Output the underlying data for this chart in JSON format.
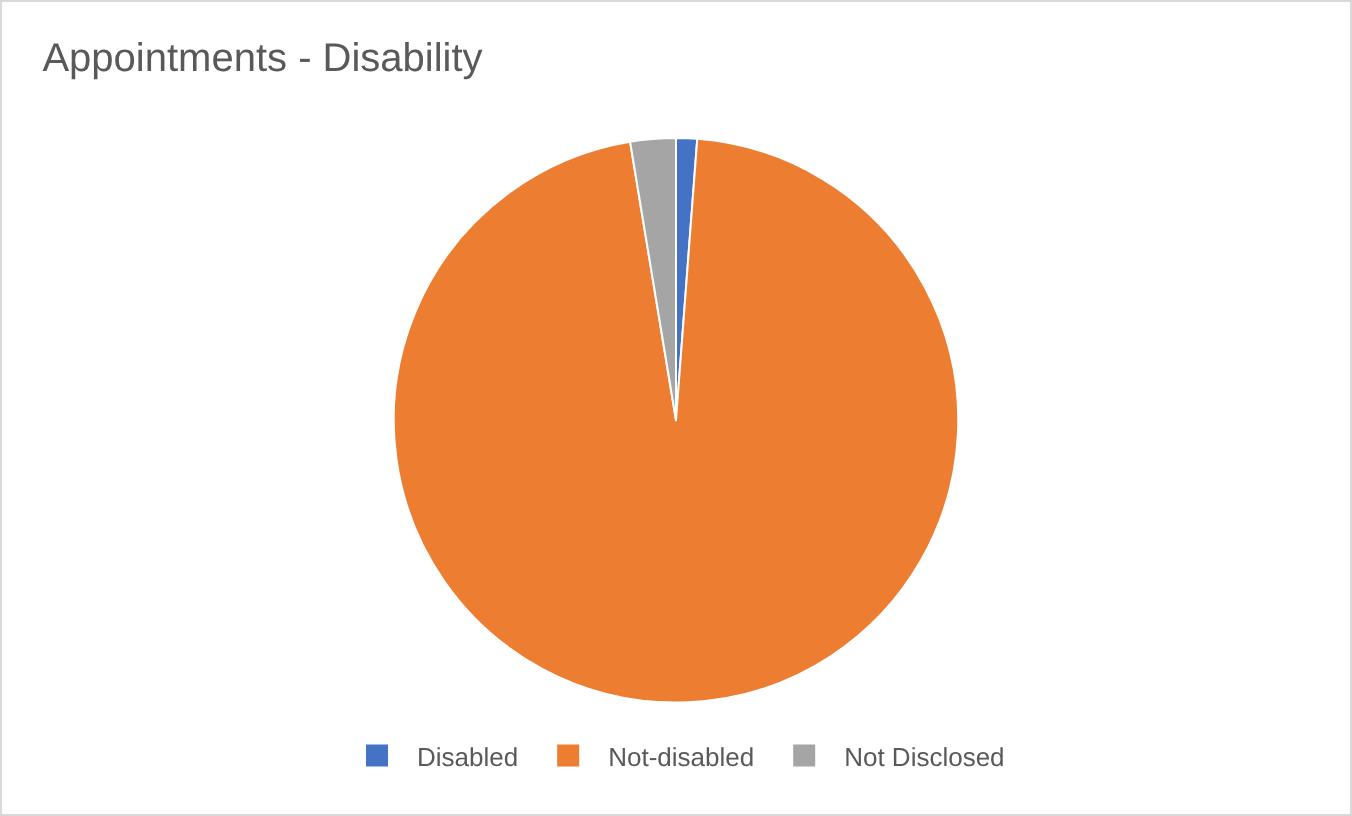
{
  "chart_data": {
    "type": "pie",
    "title": "Appointments - Disability",
    "categories": [
      "Disabled",
      "Not-disabled",
      "Not Disclosed"
    ],
    "values": [
      1.2,
      96.2,
      2.6
    ],
    "colors": [
      "#4472c4",
      "#ed7d31",
      "#a5a5a5"
    ],
    "legend": "bottom"
  }
}
